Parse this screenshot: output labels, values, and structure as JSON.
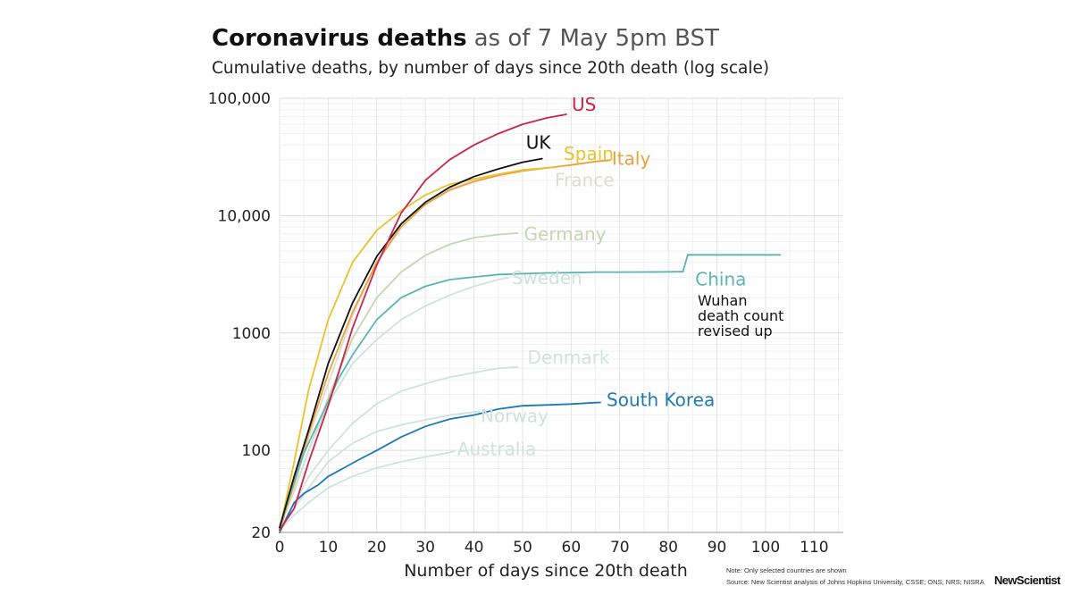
{
  "chart_data": {
    "type": "line",
    "title": "Coronavirus deaths",
    "title_suffix": "as of 7 May 5pm BST",
    "subtitle": "Cumulative deaths, by number of days since 20th death (log scale)",
    "xlabel": "Number of days since 20th death",
    "ylabel": "",
    "xlim": [
      0,
      116
    ],
    "ylim": [
      20,
      100000
    ],
    "yscale": "log",
    "grid": true,
    "legend": "none (direct labels)",
    "x_ticks": [
      0,
      10,
      20,
      30,
      40,
      50,
      60,
      70,
      80,
      90,
      100,
      110
    ],
    "y_ticks": [
      {
        "value": 20,
        "label": "20"
      },
      {
        "value": 100,
        "label": "100"
      },
      {
        "value": 1000,
        "label": "1000"
      },
      {
        "value": 10000,
        "label": "10,000"
      },
      {
        "value": 100000,
        "label": "100,000"
      }
    ],
    "series": [
      {
        "name": "Australia",
        "color": "#cfe2dd",
        "x": [
          0,
          3,
          6,
          10,
          15,
          20,
          25,
          30,
          35,
          36
        ],
        "y": [
          21,
          28,
          36,
          48,
          60,
          71,
          80,
          88,
          96,
          98
        ]
      },
      {
        "name": "Norway",
        "color": "#cfe2dd",
        "x": [
          0,
          3,
          6,
          10,
          15,
          20,
          25,
          30,
          35,
          40,
          41
        ],
        "y": [
          22,
          32,
          48,
          80,
          115,
          145,
          165,
          182,
          200,
          212,
          215
        ]
      },
      {
        "name": "Denmark",
        "color": "#cfe2dd",
        "x": [
          0,
          3,
          6,
          10,
          15,
          20,
          25,
          30,
          35,
          40,
          45,
          49
        ],
        "y": [
          22,
          35,
          60,
          100,
          170,
          250,
          320,
          370,
          420,
          460,
          500,
          514
        ]
      },
      {
        "name": "South Korea",
        "color": "#1f78b4",
        "x": [
          0,
          3,
          5,
          8,
          10,
          13,
          16,
          20,
          25,
          30,
          35,
          40,
          45,
          50,
          55,
          60,
          65,
          66
        ],
        "y": [
          20,
          36,
          43,
          51,
          60,
          70,
          82,
          100,
          130,
          160,
          185,
          200,
          225,
          240,
          244,
          248,
          255,
          256
        ]
      },
      {
        "name": "Germany",
        "color": "#c5d6b0",
        "x": [
          0,
          3,
          6,
          10,
          15,
          20,
          25,
          30,
          35,
          40,
          45,
          49
        ],
        "y": [
          23,
          45,
          100,
          280,
          900,
          2000,
          3300,
          4600,
          5700,
          6500,
          6900,
          7100
        ]
      },
      {
        "name": "Sweden",
        "color": "#cfe2dd",
        "x": [
          0,
          3,
          6,
          10,
          15,
          20,
          25,
          30,
          35,
          40,
          45,
          47
        ],
        "y": [
          22,
          45,
          100,
          250,
          550,
          880,
          1300,
          1700,
          2100,
          2500,
          2850,
          2950
        ]
      },
      {
        "name": "France",
        "color": "#e4dbcf",
        "x": [
          0,
          3,
          6,
          10,
          15,
          20,
          25,
          30,
          35,
          40,
          45,
          50,
          55,
          57
        ],
        "y": [
          22,
          48,
          130,
          370,
          1400,
          4100,
          8500,
          13000,
          17000,
          20000,
          22300,
          24300,
          25500,
          25800
        ]
      },
      {
        "name": "Italy",
        "color": "#e9a23b",
        "x": [
          0,
          3,
          6,
          10,
          15,
          20,
          25,
          30,
          35,
          40,
          45,
          50,
          55,
          60,
          65,
          68
        ],
        "y": [
          21,
          52,
          140,
          450,
          1500,
          4000,
          8000,
          12500,
          16500,
          19500,
          22000,
          24000,
          25500,
          27000,
          28900,
          29700
        ]
      },
      {
        "name": "Spain",
        "color": "#e9c22a",
        "x": [
          0,
          3,
          6,
          10,
          15,
          20,
          25,
          30,
          35,
          40,
          45,
          50,
          55,
          57
        ],
        "y": [
          21,
          80,
          330,
          1300,
          4000,
          7500,
          11000,
          15000,
          18500,
          20500,
          22500,
          24500,
          25600,
          26000
        ]
      },
      {
        "name": "China",
        "color": "#5ab5b2",
        "x": [
          0,
          3,
          5,
          8,
          10,
          12,
          15,
          20,
          25,
          30,
          35,
          40,
          45,
          50,
          55,
          60,
          65,
          70,
          75,
          80,
          83,
          84,
          90,
          95,
          100,
          103
        ],
        "y": [
          22,
          55,
          95,
          175,
          260,
          400,
          650,
          1300,
          2000,
          2500,
          2850,
          3000,
          3150,
          3200,
          3250,
          3270,
          3300,
          3300,
          3310,
          3320,
          3330,
          4630,
          4630,
          4632,
          4633,
          4633
        ]
      },
      {
        "name": "UK",
        "color": "#111111",
        "x": [
          0,
          3,
          6,
          10,
          15,
          20,
          25,
          30,
          35,
          40,
          45,
          50,
          54
        ],
        "y": [
          22,
          60,
          150,
          550,
          1800,
          4500,
          8500,
          13000,
          17500,
          21500,
          25000,
          28500,
          30600
        ]
      },
      {
        "name": "US",
        "color": "#c8264c",
        "x": [
          0,
          3,
          6,
          10,
          15,
          20,
          25,
          30,
          35,
          40,
          45,
          50,
          55,
          59
        ],
        "y": [
          21,
          32,
          80,
          240,
          1100,
          3800,
          10500,
          20000,
          30000,
          40000,
          50000,
          60000,
          68000,
          73000
        ]
      }
    ],
    "labels": [
      {
        "text": "US",
        "series": "US"
      },
      {
        "text": "UK",
        "series": "UK"
      },
      {
        "text": "Spain",
        "series": "Spain"
      },
      {
        "text": "Italy",
        "series": "Italy"
      },
      {
        "text": "France",
        "series": "France"
      },
      {
        "text": "Germany",
        "series": "Germany"
      },
      {
        "text": "Sweden",
        "series": "Sweden"
      },
      {
        "text": "China",
        "series": "China"
      },
      {
        "text": "Denmark",
        "series": "Denmark"
      },
      {
        "text": "Norway",
        "series": "Norway"
      },
      {
        "text": "South Korea",
        "series": "South Korea"
      },
      {
        "text": "Australia",
        "series": "Australia"
      }
    ],
    "annotation": [
      "Wuhan",
      "death count",
      "revised up"
    ],
    "notes": [
      "Note: Only selected countries are shown",
      "Source: New Scientist analysis of Johns Hopkins University, CSSE; ONS; NRS; NISRA"
    ],
    "logo": "NewScientist"
  }
}
